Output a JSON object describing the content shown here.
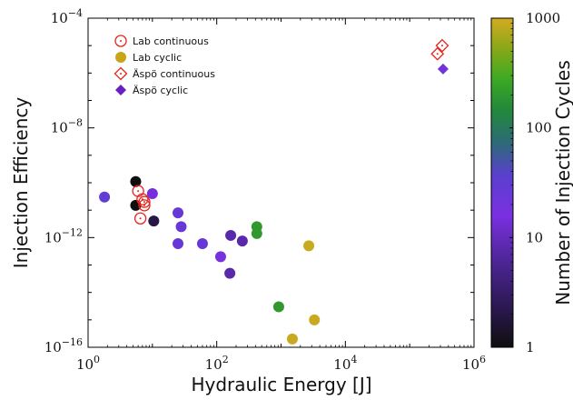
{
  "chart_data": {
    "type": "scatter",
    "xlabel": "Hydraulic Energy [J]",
    "ylabel": "Injection Efficiency",
    "colorbar_label": "Number of Injection Cycles",
    "x_scale": "log",
    "y_scale": "log",
    "xlim": [
      1,
      1000000
    ],
    "ylim": [
      1e-16,
      0.0001
    ],
    "x_ticks": [
      1,
      100,
      10000,
      1000000
    ],
    "y_ticks": [
      1e-16,
      1e-12,
      1e-08,
      0.0001
    ],
    "x_tick_labels": [
      {
        "b": "10",
        "e": "0"
      },
      {
        "b": "10",
        "e": "2"
      },
      {
        "b": "10",
        "e": "4"
      },
      {
        "b": "10",
        "e": "6"
      }
    ],
    "y_tick_labels": [
      {
        "b": "10",
        "e": "−16"
      },
      {
        "b": "10",
        "e": "−12"
      },
      {
        "b": "10",
        "e": "−8"
      },
      {
        "b": "10",
        "e": "−4"
      }
    ],
    "colorbar": {
      "scale": "log",
      "range": [
        1,
        1000
      ],
      "ticks": [
        "1",
        "10",
        "100",
        "1000"
      ]
    },
    "grid": false,
    "legend_placement": "top-left",
    "series": [
      {
        "name": "Lab continuous",
        "marker": "circle-dot-open",
        "color": "#e8231b",
        "points": [
          {
            "x": 6.0,
            "y": 5e-11
          },
          {
            "x": 7.0,
            "y": 2.5e-11
          },
          {
            "x": 7.5,
            "y": 2e-11
          },
          {
            "x": 7.5,
            "y": 1.5e-11
          },
          {
            "x": 6.5,
            "y": 5e-12
          }
        ]
      },
      {
        "name": "Lab cyclic",
        "marker": "circle",
        "points": [
          {
            "x": 5.5,
            "y": 1.1e-10,
            "cycles": 1
          },
          {
            "x": 5.5,
            "y": 1.5e-11,
            "cycles": 1
          },
          {
            "x": 10.5,
            "y": 4e-12,
            "cycles": 2
          },
          {
            "x": 10.0,
            "y": 4e-11,
            "cycles": 15
          },
          {
            "x": 1.8,
            "y": 3e-11,
            "cycles": 30
          },
          {
            "x": 25,
            "y": 8e-12,
            "cycles": 25
          },
          {
            "x": 28,
            "y": 2.5e-12,
            "cycles": 25
          },
          {
            "x": 25,
            "y": 6e-13,
            "cycles": 25
          },
          {
            "x": 60,
            "y": 6e-13,
            "cycles": 25
          },
          {
            "x": 115,
            "y": 2e-13,
            "cycles": 18
          },
          {
            "x": 160,
            "y": 5e-14,
            "cycles": 8
          },
          {
            "x": 165,
            "y": 1.2e-12,
            "cycles": 8
          },
          {
            "x": 250,
            "y": 7.5e-13,
            "cycles": 8
          },
          {
            "x": 420,
            "y": 2.5e-12,
            "cycles": 200
          },
          {
            "x": 420,
            "y": 1.4e-12,
            "cycles": 200
          },
          {
            "x": 920,
            "y": 3e-15,
            "cycles": 200
          },
          {
            "x": 2700,
            "y": 5e-13,
            "cycles": 900
          },
          {
            "x": 3300,
            "y": 1e-15,
            "cycles": 900
          },
          {
            "x": 1500,
            "y": 2e-16,
            "cycles": 900
          }
        ]
      },
      {
        "name": "Äspö continuous",
        "marker": "diamond-dot-open",
        "color": "#e8231b",
        "points": [
          {
            "x": 320000,
            "y": 1e-05
          },
          {
            "x": 270000,
            "y": 5e-06
          }
        ]
      },
      {
        "name": "Äspö cyclic",
        "marker": "diamond",
        "points": [
          {
            "x": 330000,
            "y": 1.4e-06,
            "cycles": 20
          }
        ]
      }
    ]
  }
}
